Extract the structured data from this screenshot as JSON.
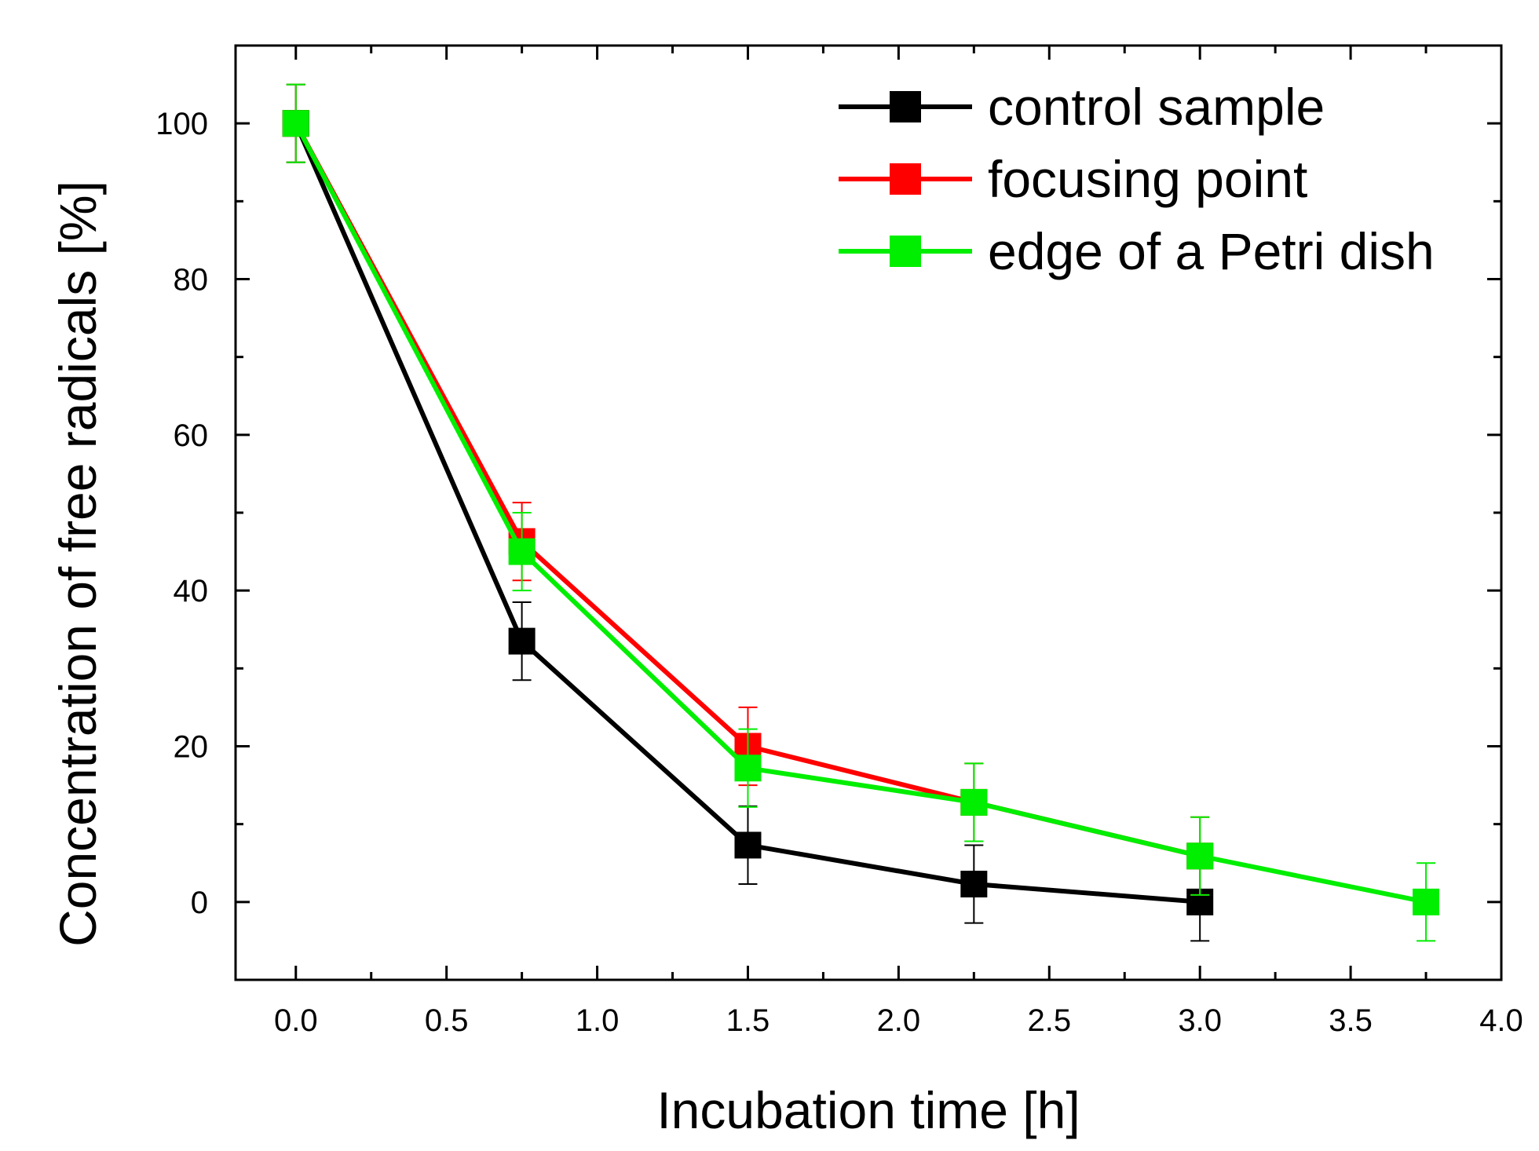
{
  "chart_data": {
    "type": "line",
    "title": "",
    "xlabel": "Incubation time [h]",
    "ylabel": "Concentration of free radicals [%]",
    "xlim": [
      -0.2,
      4.0
    ],
    "ylim": [
      -10,
      110
    ],
    "x_ticks": [
      0.0,
      0.5,
      1.0,
      1.5,
      2.0,
      2.5,
      3.0,
      3.5,
      4.0
    ],
    "x_tick_labels": [
      "0.0",
      "0.5",
      "1.0",
      "1.5",
      "2.0",
      "2.5",
      "3.0",
      "3.5",
      "4.0"
    ],
    "y_ticks": [
      0,
      20,
      40,
      60,
      80,
      100
    ],
    "y_tick_labels": [
      "0",
      "20",
      "40",
      "60",
      "80",
      "100"
    ],
    "grid": false,
    "legend_position": "top-right",
    "series": [
      {
        "name": "control sample",
        "color": "#000000",
        "x": [
          0.0,
          0.75,
          1.5,
          2.25,
          3.0
        ],
        "y": [
          100,
          33.5,
          7.3,
          2.3,
          0.0
        ],
        "err": [
          5,
          5,
          5,
          5,
          5
        ]
      },
      {
        "name": "focusing point",
        "color": "#ff0000",
        "x": [
          0.0,
          0.75,
          1.5,
          2.25,
          3.0
        ],
        "y": [
          100,
          46.3,
          20.0,
          12.8,
          5.9
        ],
        "err": [
          5,
          5,
          5,
          5,
          5
        ]
      },
      {
        "name": "edge of a Petri dish",
        "color": "#00ee00",
        "x": [
          0.0,
          0.75,
          1.5,
          2.25,
          3.0,
          3.75
        ],
        "y": [
          100,
          45.0,
          17.2,
          12.8,
          5.9,
          0.0
        ],
        "err": [
          5,
          5,
          5,
          5,
          5,
          5
        ]
      }
    ]
  }
}
